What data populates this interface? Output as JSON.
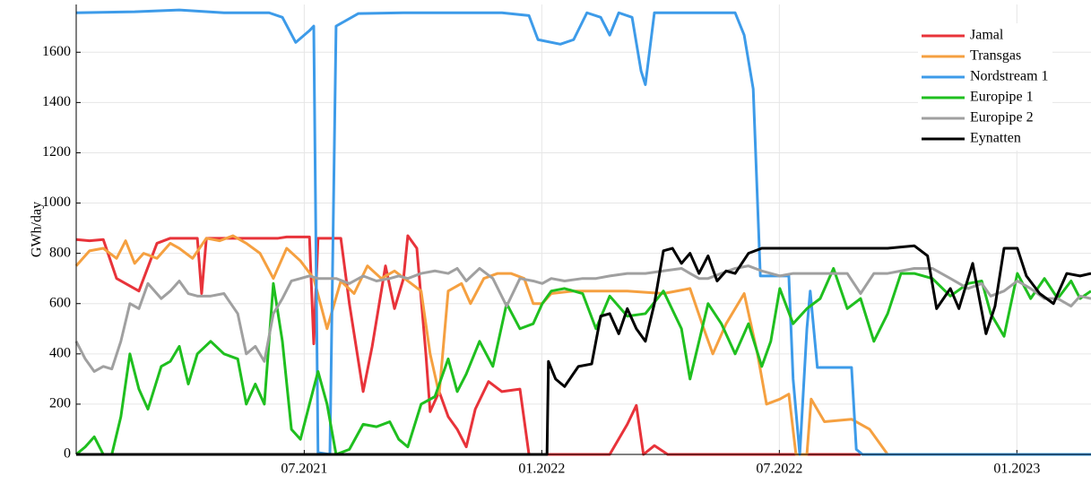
{
  "chart_data": {
    "type": "line",
    "ylabel": "GWh/day",
    "xlim": [
      2021.02,
      2023.156
    ],
    "ylim": [
      0,
      1790
    ],
    "xticks": [
      {
        "value": 2021.5,
        "label": "07.2021"
      },
      {
        "value": 2022.0,
        "label": "01.2022"
      },
      {
        "value": 2022.5,
        "label": "07.2022"
      },
      {
        "value": 2023.0,
        "label": "01.2023"
      }
    ],
    "yticks": [
      0,
      200,
      400,
      600,
      800,
      1000,
      1200,
      1400,
      1600
    ],
    "grid": true,
    "legend": "upper right",
    "series": [
      {
        "name": "Jamal",
        "color": "#e8333a",
        "x": [
          2021.02,
          2021.048,
          2021.077,
          2021.105,
          2021.152,
          2021.19,
          2021.218,
          2021.275,
          2021.284,
          2021.294,
          2021.445,
          2021.463,
          2021.511,
          2021.52,
          2021.529,
          2021.577,
          2021.595,
          2021.624,
          2021.643,
          2021.671,
          2021.69,
          2021.709,
          2021.718,
          2021.737,
          2021.756,
          2021.765,
          2021.784,
          2021.803,
          2021.822,
          2021.841,
          2021.86,
          2021.888,
          2021.916,
          2021.954,
          2021.973,
          2022.143,
          2022.18,
          2022.199,
          2022.214,
          2022.237,
          2022.265,
          2022.671
        ],
        "values": [
          855,
          850,
          855,
          700,
          650,
          840,
          860,
          860,
          640,
          860,
          860,
          865,
          865,
          440,
          860,
          860,
          600,
          250,
          430,
          750,
          580,
          700,
          870,
          820,
          400,
          170,
          250,
          150,
          100,
          30,
          180,
          290,
          250,
          260,
          0,
          0,
          120,
          195,
          0,
          35,
          0,
          0
        ]
      },
      {
        "name": "Transgas",
        "color": "#f5a040",
        "x": [
          2021.02,
          2021.048,
          2021.077,
          2021.105,
          2021.124,
          2021.143,
          2021.162,
          2021.19,
          2021.218,
          2021.237,
          2021.265,
          2021.294,
          2021.322,
          2021.35,
          2021.378,
          2021.407,
          2021.435,
          2021.463,
          2021.492,
          2021.52,
          2021.548,
          2021.577,
          2021.605,
          2021.633,
          2021.662,
          2021.69,
          2021.718,
          2021.746,
          2021.765,
          2021.784,
          2021.803,
          2021.831,
          2021.85,
          2021.878,
          2021.907,
          2021.935,
          2021.963,
          2021.982,
          2022.001,
          2022.02,
          2022.067,
          2022.18,
          2022.256,
          2022.312,
          2022.341,
          2022.36,
          2022.388,
          2022.426,
          2022.454,
          2022.473,
          2022.501,
          2022.52,
          2022.535,
          2022.558,
          2022.567,
          2022.595,
          2022.652,
          2022.69,
          2022.728,
          2022.746
        ],
        "values": [
          750,
          810,
          820,
          780,
          850,
          760,
          800,
          780,
          840,
          820,
          780,
          860,
          850,
          870,
          840,
          800,
          700,
          820,
          770,
          700,
          500,
          690,
          640,
          750,
          700,
          730,
          690,
          650,
          400,
          240,
          650,
          680,
          600,
          700,
          720,
          720,
          700,
          600,
          600,
          640,
          650,
          650,
          640,
          660,
          500,
          400,
          520,
          640,
          400,
          200,
          220,
          240,
          0,
          0,
          220,
          130,
          140,
          100,
          0,
          0
        ]
      },
      {
        "name": "Nordstream 1",
        "color": "#3d9be9",
        "x": [
          2021.02,
          2021.143,
          2021.237,
          2021.331,
          2021.426,
          2021.454,
          2021.482,
          2021.511,
          2021.52,
          2021.529,
          2021.554,
          2021.567,
          2021.614,
          2021.709,
          2021.803,
          2021.916,
          2021.973,
          2021.992,
          2022.039,
          2022.067,
          2022.095,
          2022.124,
          2022.143,
          2022.162,
          2022.19,
          2022.209,
          2022.218,
          2022.237,
          2022.331,
          2022.407,
          2022.426,
          2022.445,
          2022.46,
          2022.52,
          2022.529,
          2022.543,
          2022.558,
          2022.565,
          2022.58,
          2022.652,
          2022.662,
          2022.675,
          2023.156
        ],
        "values": [
          1757,
          1761,
          1768,
          1757,
          1757,
          1739,
          1639,
          1686,
          1704,
          7,
          0,
          1704,
          1754,
          1757,
          1757,
          1757,
          1746,
          1650,
          1632,
          1650,
          1757,
          1739,
          1668,
          1757,
          1739,
          1525,
          1471,
          1757,
          1757,
          1757,
          1668,
          1454,
          710,
          710,
          300,
          0,
          500,
          650,
          346,
          346,
          20,
          0,
          0
        ]
      },
      {
        "name": "Europipe 1",
        "color": "#1fbf1f",
        "x": [
          2021.02,
          2021.039,
          2021.058,
          2021.077,
          2021.095,
          2021.114,
          2021.133,
          2021.152,
          2021.171,
          2021.199,
          2021.218,
          2021.237,
          2021.256,
          2021.275,
          2021.303,
          2021.331,
          2021.36,
          2021.378,
          2021.397,
          2021.416,
          2021.435,
          2021.454,
          2021.473,
          2021.492,
          2021.511,
          2021.529,
          2021.548,
          2021.567,
          2021.595,
          2021.624,
          2021.652,
          2021.68,
          2021.699,
          2021.718,
          2021.746,
          2021.775,
          2021.803,
          2021.822,
          2021.841,
          2021.869,
          2021.897,
          2021.926,
          2021.954,
          2021.982,
          2022.001,
          2022.02,
          2022.048,
          2022.086,
          2022.114,
          2022.143,
          2022.18,
          2022.218,
          2022.256,
          2022.294,
          2022.312,
          2022.331,
          2022.35,
          2022.378,
          2022.407,
          2022.435,
          2022.463,
          2022.482,
          2022.501,
          2022.529,
          2022.558,
          2022.586,
          2022.614,
          2022.643,
          2022.671,
          2022.699,
          2022.728,
          2022.756,
          2022.784,
          2022.822,
          2022.86,
          2022.897,
          2022.926,
          2022.945,
          2022.973,
          2023.001,
          2023.029,
          2023.058,
          2023.086,
          2023.114,
          2023.133,
          2023.156
        ],
        "values": [
          0,
          30,
          70,
          0,
          0,
          150,
          400,
          260,
          180,
          350,
          370,
          430,
          280,
          400,
          450,
          400,
          380,
          200,
          280,
          200,
          680,
          450,
          100,
          60,
          200,
          330,
          200,
          0,
          20,
          120,
          110,
          130,
          60,
          30,
          200,
          230,
          380,
          250,
          320,
          450,
          350,
          600,
          500,
          520,
          600,
          650,
          660,
          640,
          500,
          630,
          550,
          560,
          650,
          500,
          300,
          450,
          600,
          520,
          400,
          520,
          350,
          450,
          660,
          520,
          580,
          620,
          740,
          580,
          620,
          450,
          560,
          720,
          720,
          700,
          630,
          680,
          690,
          560,
          470,
          720,
          620,
          700,
          620,
          690,
          620,
          650
        ]
      },
      {
        "name": "Europipe 2",
        "color": "#a0a0a0",
        "x": [
          2021.02,
          2021.039,
          2021.058,
          2021.077,
          2021.095,
          2021.114,
          2021.133,
          2021.152,
          2021.171,
          2021.199,
          2021.218,
          2021.237,
          2021.256,
          2021.275,
          2021.303,
          2021.331,
          2021.36,
          2021.378,
          2021.397,
          2021.416,
          2021.435,
          2021.454,
          2021.473,
          2021.492,
          2021.511,
          2021.529,
          2021.548,
          2021.567,
          2021.595,
          2021.624,
          2021.652,
          2021.68,
          2021.699,
          2021.718,
          2021.746,
          2021.775,
          2021.803,
          2021.822,
          2021.841,
          2021.869,
          2021.897,
          2021.926,
          2021.954,
          2021.982,
          2022.001,
          2022.02,
          2022.048,
          2022.086,
          2022.114,
          2022.143,
          2022.18,
          2022.218,
          2022.256,
          2022.294,
          2022.312,
          2022.331,
          2022.35,
          2022.378,
          2022.407,
          2022.435,
          2022.463,
          2022.482,
          2022.501,
          2022.529,
          2022.558,
          2022.586,
          2022.614,
          2022.643,
          2022.671,
          2022.699,
          2022.728,
          2022.756,
          2022.784,
          2022.822,
          2022.86,
          2022.897,
          2022.926,
          2022.945,
          2022.973,
          2023.001,
          2023.029,
          2023.058,
          2023.086,
          2023.114,
          2023.133,
          2023.156
        ],
        "values": [
          450,
          380,
          330,
          350,
          340,
          450,
          600,
          580,
          680,
          620,
          650,
          690,
          640,
          630,
          630,
          640,
          560,
          400,
          430,
          370,
          560,
          620,
          690,
          700,
          710,
          700,
          700,
          700,
          680,
          710,
          690,
          700,
          710,
          700,
          720,
          730,
          720,
          740,
          690,
          740,
          700,
          590,
          700,
          690,
          680,
          700,
          690,
          700,
          700,
          710,
          720,
          720,
          730,
          740,
          720,
          700,
          700,
          720,
          740,
          750,
          730,
          720,
          710,
          720,
          720,
          720,
          720,
          720,
          640,
          720,
          720,
          730,
          740,
          740,
          700,
          660,
          680,
          630,
          650,
          690,
          660,
          620,
          620,
          590,
          630,
          620
        ]
      },
      {
        "name": "Eynatten",
        "color": "#000000",
        "x": [
          2021.02,
          2022.011,
          2022.014,
          2022.029,
          2022.048,
          2022.077,
          2022.105,
          2022.124,
          2022.143,
          2022.162,
          2022.18,
          2022.199,
          2022.218,
          2022.237,
          2022.256,
          2022.275,
          2022.294,
          2022.312,
          2022.331,
          2022.35,
          2022.369,
          2022.388,
          2022.407,
          2022.435,
          2022.463,
          2022.501,
          2022.558,
          2022.614,
          2022.671,
          2022.728,
          2022.784,
          2022.812,
          2022.831,
          2022.86,
          2022.878,
          2022.907,
          2022.935,
          2022.954,
          2022.973,
          2023.001,
          2023.02,
          2023.048,
          2023.077,
          2023.105,
          2023.133,
          2023.156
        ],
        "values": [
          0,
          0,
          370,
          300,
          270,
          350,
          360,
          550,
          560,
          480,
          580,
          500,
          450,
          600,
          810,
          820,
          760,
          800,
          720,
          790,
          690,
          730,
          720,
          800,
          820,
          820,
          820,
          820,
          820,
          820,
          830,
          790,
          580,
          660,
          580,
          760,
          480,
          590,
          820,
          820,
          710,
          640,
          600,
          720,
          710,
          720
        ]
      }
    ]
  }
}
